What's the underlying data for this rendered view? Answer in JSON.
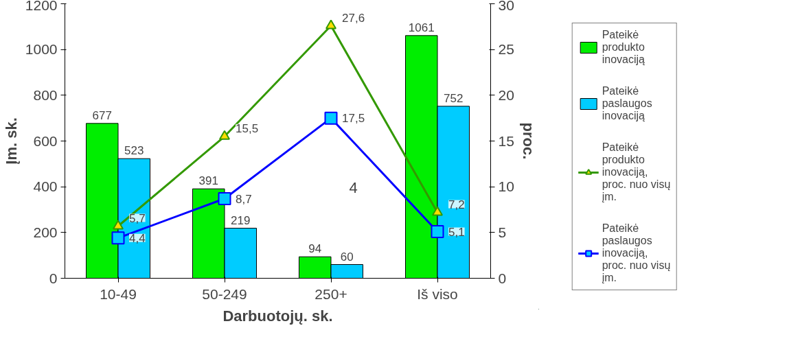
{
  "chart_data": {
    "type": "bar",
    "xlabel": "Darbuotojų. sk.",
    "ylabel": "Įm. sk.",
    "y2label": "proc.",
    "categories": [
      "10-49",
      "50-249",
      "250+",
      "Iš viso"
    ],
    "series": [
      {
        "name": "Pateikė produkto inovaciją",
        "color": "#00ee00",
        "values": [
          677,
          391,
          94,
          1061
        ],
        "value_labels": [
          "677",
          "391",
          "94",
          "1061"
        ]
      },
      {
        "name": "Pateikė paslaugos inovaciją",
        "color": "#00ccff",
        "values": [
          523,
          219,
          60,
          752
        ],
        "value_labels": [
          "523",
          "219",
          "60",
          "752"
        ]
      },
      {
        "name": "Pateikė produkto inovaciją, proc. nuo visų įm.",
        "type": "line",
        "axis": "y2",
        "color": "#339900",
        "marker": "triangle",
        "values": [
          5.7,
          15.5,
          27.6,
          7.2
        ],
        "value_labels": [
          "5,7",
          "15,5",
          "27,6",
          "7,2"
        ]
      },
      {
        "name": "Pateikė paslaugos inovaciją, proc. nuo visų įm.",
        "type": "line",
        "axis": "y2",
        "color": "#0000ff",
        "marker": "square",
        "values": [
          4.4,
          8.7,
          17.5,
          5.1
        ],
        "value_labels": [
          "4,4",
          "8,7",
          "17,5",
          "5,1"
        ]
      }
    ],
    "ylim": [
      0,
      1200
    ],
    "yticks": [
      0,
      200,
      400,
      600,
      800,
      1000,
      1200
    ],
    "y2lim": [
      0,
      30
    ],
    "y2ticks": [
      0,
      5,
      10,
      15,
      20,
      25,
      30
    ],
    "annotations": [
      "4"
    ],
    "grid": false,
    "legend": "right"
  }
}
